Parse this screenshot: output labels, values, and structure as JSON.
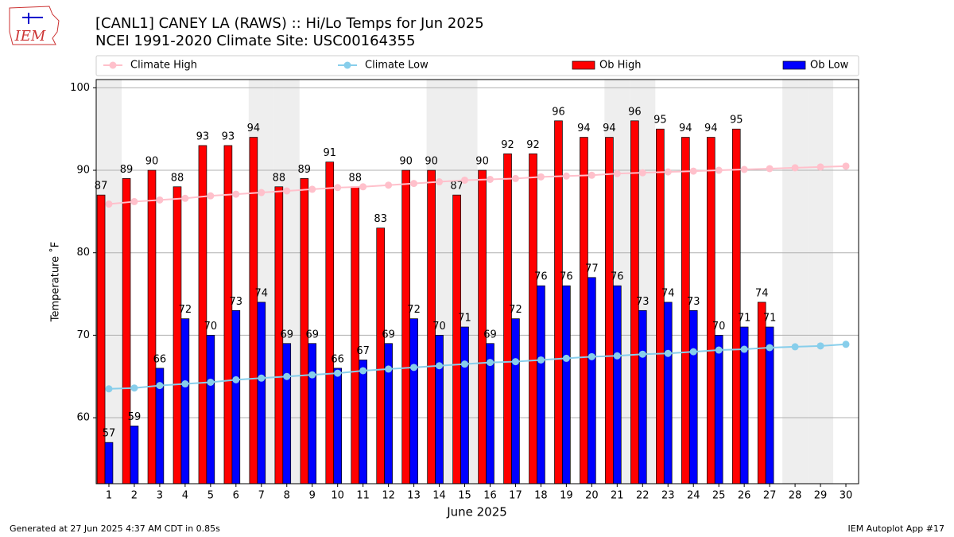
{
  "chart_data": {
    "type": "bar",
    "title": "[CANL1] CANEY  LA  (RAWS) :: Hi/Lo Temps for Jun 2025",
    "subtitle": "NCEI 1991-2020 Climate Site: USC00164355",
    "x_label": "June 2025",
    "y_label": "Temperature ˚F",
    "x": [
      1,
      2,
      3,
      4,
      5,
      6,
      7,
      8,
      9,
      10,
      11,
      12,
      13,
      14,
      15,
      16,
      17,
      18,
      19,
      20,
      21,
      22,
      23,
      24,
      25,
      26,
      27,
      28,
      29,
      30
    ],
    "xlim": [
      0.5,
      30.5
    ],
    "xticks": [
      1,
      2,
      3,
      4,
      5,
      6,
      7,
      8,
      9,
      10,
      11,
      12,
      13,
      14,
      15,
      16,
      17,
      18,
      19,
      20,
      21,
      22,
      23,
      24,
      25,
      26,
      27,
      28,
      29,
      30
    ],
    "ylim": [
      52,
      101
    ],
    "yticks": [
      60,
      70,
      80,
      90,
      100
    ],
    "grid": true,
    "shaded_days": [
      1,
      7,
      8,
      14,
      15,
      21,
      22,
      28,
      29
    ],
    "shade_color": "#eeeeee",
    "legend": "top",
    "series": [
      {
        "name": "Climate High",
        "type": "line",
        "color": "#ffc0cb",
        "values": [
          85.9,
          86.2,
          86.4,
          86.6,
          86.9,
          87.1,
          87.3,
          87.5,
          87.7,
          87.9,
          88.0,
          88.2,
          88.4,
          88.6,
          88.8,
          88.9,
          89.0,
          89.2,
          89.3,
          89.4,
          89.6,
          89.7,
          89.8,
          89.9,
          90.0,
          90.1,
          90.2,
          90.3,
          90.4,
          90.5
        ]
      },
      {
        "name": "Climate Low",
        "type": "line",
        "color": "#87ceeb",
        "values": [
          63.5,
          63.6,
          63.9,
          64.1,
          64.3,
          64.6,
          64.8,
          65.0,
          65.2,
          65.4,
          65.7,
          65.9,
          66.1,
          66.3,
          66.5,
          66.7,
          66.8,
          67.0,
          67.2,
          67.4,
          67.5,
          67.7,
          67.8,
          68.0,
          68.2,
          68.3,
          68.5,
          68.6,
          68.7,
          68.9
        ]
      },
      {
        "name": "Ob High",
        "type": "bar",
        "color": "#ff0000",
        "values": [
          87,
          89,
          90,
          88,
          93,
          93,
          94,
          88,
          89,
          91,
          88,
          83,
          90,
          90,
          87,
          90,
          92,
          92,
          96,
          94,
          94,
          96,
          95,
          94,
          94,
          95,
          74,
          null,
          null,
          null
        ]
      },
      {
        "name": "Ob Low",
        "type": "bar",
        "color": "#0000ff",
        "values": [
          57,
          59,
          66,
          72,
          70,
          73,
          74,
          69,
          69,
          66,
          67,
          69,
          72,
          70,
          71,
          69,
          72,
          76,
          76,
          77,
          76,
          73,
          74,
          73,
          70,
          71,
          71,
          null,
          null,
          null
        ]
      }
    ]
  },
  "logo_text": "IEM",
  "footer_left": "Generated at 27 Jun 2025 4:37 AM CDT in 0.85s",
  "footer_right": "IEM Autoplot App #17"
}
